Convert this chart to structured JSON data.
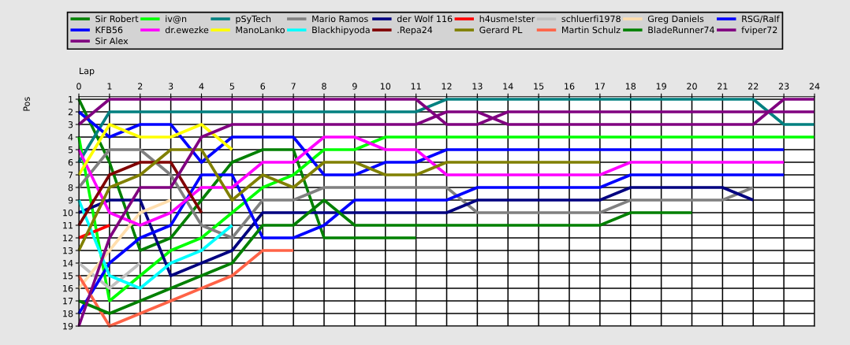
{
  "chart_data": {
    "type": "line",
    "xlabel": "Lap",
    "ylabel": "Pos",
    "x": [
      0,
      1,
      2,
      3,
      4,
      5,
      6,
      7,
      8,
      9,
      10,
      11,
      12,
      13,
      14,
      15,
      16,
      17,
      18,
      19,
      20,
      21,
      22,
      23,
      24
    ],
    "xlim": [
      0,
      24
    ],
    "xticks": [
      0,
      1,
      2,
      3,
      4,
      5,
      6,
      7,
      8,
      9,
      10,
      11,
      12,
      13,
      14,
      15,
      16,
      17,
      18,
      19,
      20,
      21,
      22,
      23,
      24
    ],
    "ylim": [
      19,
      0.8
    ],
    "yticks": [
      1,
      2,
      3,
      4,
      5,
      6,
      7,
      8,
      9,
      10,
      11,
      12,
      13,
      14,
      15,
      16,
      17,
      18,
      19
    ],
    "grid": true,
    "legend": "top",
    "series": [
      {
        "name": "Sir Robert",
        "color": "#008000",
        "values": [
          1,
          6,
          13,
          12,
          9,
          6,
          5,
          5,
          12,
          12,
          12,
          12,
          null,
          null,
          null,
          null,
          null,
          null,
          null,
          null,
          null,
          null,
          null,
          null,
          null
        ]
      },
      {
        "name": "iv@n",
        "color": "#00ff00",
        "values": [
          4,
          17,
          15,
          13,
          12,
          10,
          8,
          7,
          5,
          5,
          4,
          4,
          4,
          4,
          4,
          4,
          4,
          4,
          4,
          4,
          4,
          4,
          4,
          4,
          4
        ]
      },
      {
        "name": "pSyTech",
        "color": "#008080",
        "values": [
          6,
          2,
          2,
          2,
          2,
          2,
          2,
          2,
          2,
          2,
          2,
          2,
          1,
          1,
          1,
          1,
          1,
          1,
          1,
          1,
          1,
          1,
          1,
          3,
          3
        ]
      },
      {
        "name": "Mario Ramos",
        "color": "#808080",
        "values": [
          8,
          5,
          5,
          7,
          11,
          12,
          9,
          9,
          8,
          8,
          8,
          8,
          8,
          10,
          10,
          10,
          10,
          10,
          9,
          9,
          9,
          9,
          8,
          null,
          null
        ]
      },
      {
        "name": "der Wolf 116",
        "color": "#000080",
        "values": [
          10,
          9,
          9,
          15,
          14,
          13,
          10,
          10,
          10,
          10,
          10,
          10,
          10,
          9,
          9,
          9,
          9,
          9,
          8,
          8,
          8,
          8,
          9,
          null,
          null
        ]
      },
      {
        "name": "h4usme!ster",
        "color": "#ff0000",
        "values": [
          12,
          11,
          null,
          null,
          null,
          null,
          null,
          null,
          null,
          null,
          null,
          null,
          null,
          null,
          null,
          null,
          null,
          null,
          null,
          null,
          null,
          null,
          null,
          null,
          null
        ]
      },
      {
        "name": "schluerfi1978",
        "color": "#c0c0c0",
        "values": [
          14,
          16,
          14,
          null,
          null,
          null,
          null,
          null,
          null,
          null,
          null,
          null,
          null,
          null,
          null,
          null,
          null,
          null,
          null,
          null,
          null,
          null,
          null,
          null,
          null
        ]
      },
      {
        "name": "Greg Daniels",
        "color": "#ffdead",
        "values": [
          16,
          13,
          10,
          9,
          null,
          null,
          null,
          null,
          null,
          null,
          null,
          null,
          null,
          null,
          null,
          null,
          null,
          null,
          null,
          null,
          null,
          null,
          null,
          null,
          null
        ]
      },
      {
        "name": "RSG/Ralf",
        "color": "#0000ff",
        "values": [
          2,
          4,
          3,
          3,
          6,
          4,
          4,
          4,
          7,
          7,
          6,
          6,
          5,
          5,
          5,
          5,
          5,
          5,
          5,
          5,
          5,
          5,
          5,
          5,
          null
        ]
      },
      {
        "name": "KFB56",
        "color": "#0000ff",
        "values": [
          18,
          14,
          12,
          11,
          7,
          7,
          12,
          12,
          11,
          9,
          9,
          9,
          9,
          8,
          8,
          8,
          8,
          8,
          7,
          7,
          7,
          7,
          7,
          7,
          null
        ]
      },
      {
        "name": "dr.ewezke",
        "color": "#ff00ff",
        "values": [
          5,
          10,
          11,
          10,
          8,
          8,
          6,
          6,
          4,
          4,
          5,
          5,
          7,
          7,
          7,
          7,
          7,
          7,
          6,
          6,
          6,
          6,
          6,
          6,
          null
        ]
      },
      {
        "name": "ManoLanko",
        "color": "#ffff00",
        "values": [
          7,
          3,
          4,
          4,
          3,
          5,
          null,
          null,
          null,
          null,
          null,
          null,
          null,
          null,
          null,
          null,
          null,
          null,
          null,
          null,
          null,
          null,
          null,
          null,
          null
        ]
      },
      {
        "name": "Blackhipyoda",
        "color": "#00ffff",
        "values": [
          9,
          15,
          16,
          14,
          13,
          11,
          null,
          null,
          null,
          null,
          null,
          null,
          null,
          null,
          null,
          null,
          null,
          null,
          null,
          null,
          null,
          null,
          null,
          null,
          null
        ]
      },
      {
        "name": ".Repa24",
        "color": "#800000",
        "values": [
          11,
          7,
          6,
          6,
          10,
          null,
          null,
          null,
          null,
          null,
          null,
          null,
          null,
          null,
          null,
          null,
          null,
          null,
          null,
          null,
          null,
          null,
          null,
          null,
          null
        ]
      },
      {
        "name": "Gerard PL",
        "color": "#808000",
        "values": [
          13,
          8,
          7,
          5,
          5,
          9,
          7,
          8,
          6,
          6,
          7,
          7,
          6,
          6,
          6,
          6,
          6,
          6,
          null,
          null,
          null,
          null,
          null,
          null,
          null
        ]
      },
      {
        "name": "Martin Schulz",
        "color": "#ff6347",
        "values": [
          15,
          19,
          18,
          17,
          16,
          15,
          13,
          13,
          null,
          null,
          null,
          null,
          null,
          null,
          null,
          null,
          null,
          null,
          null,
          null,
          null,
          null,
          null,
          null,
          null
        ]
      },
      {
        "name": "BladeRunner74",
        "color": "#008000",
        "values": [
          17,
          18,
          17,
          16,
          15,
          14,
          11,
          11,
          9,
          11,
          11,
          11,
          11,
          11,
          11,
          11,
          11,
          11,
          10,
          10,
          10,
          null,
          null,
          null,
          null
        ]
      },
      {
        "name": "fviper72",
        "color": "#800080",
        "values": [
          3,
          1,
          1,
          1,
          1,
          1,
          1,
          1,
          1,
          1,
          1,
          1,
          3,
          3,
          2,
          2,
          2,
          2,
          2,
          2,
          2,
          2,
          2,
          2,
          2
        ]
      },
      {
        "name": "Sir Alex",
        "color": "#800080",
        "values": [
          19,
          12,
          8,
          8,
          4,
          3,
          3,
          3,
          3,
          3,
          3,
          3,
          2,
          2,
          3,
          3,
          3,
          3,
          3,
          3,
          3,
          3,
          3,
          1,
          1
        ]
      }
    ]
  }
}
